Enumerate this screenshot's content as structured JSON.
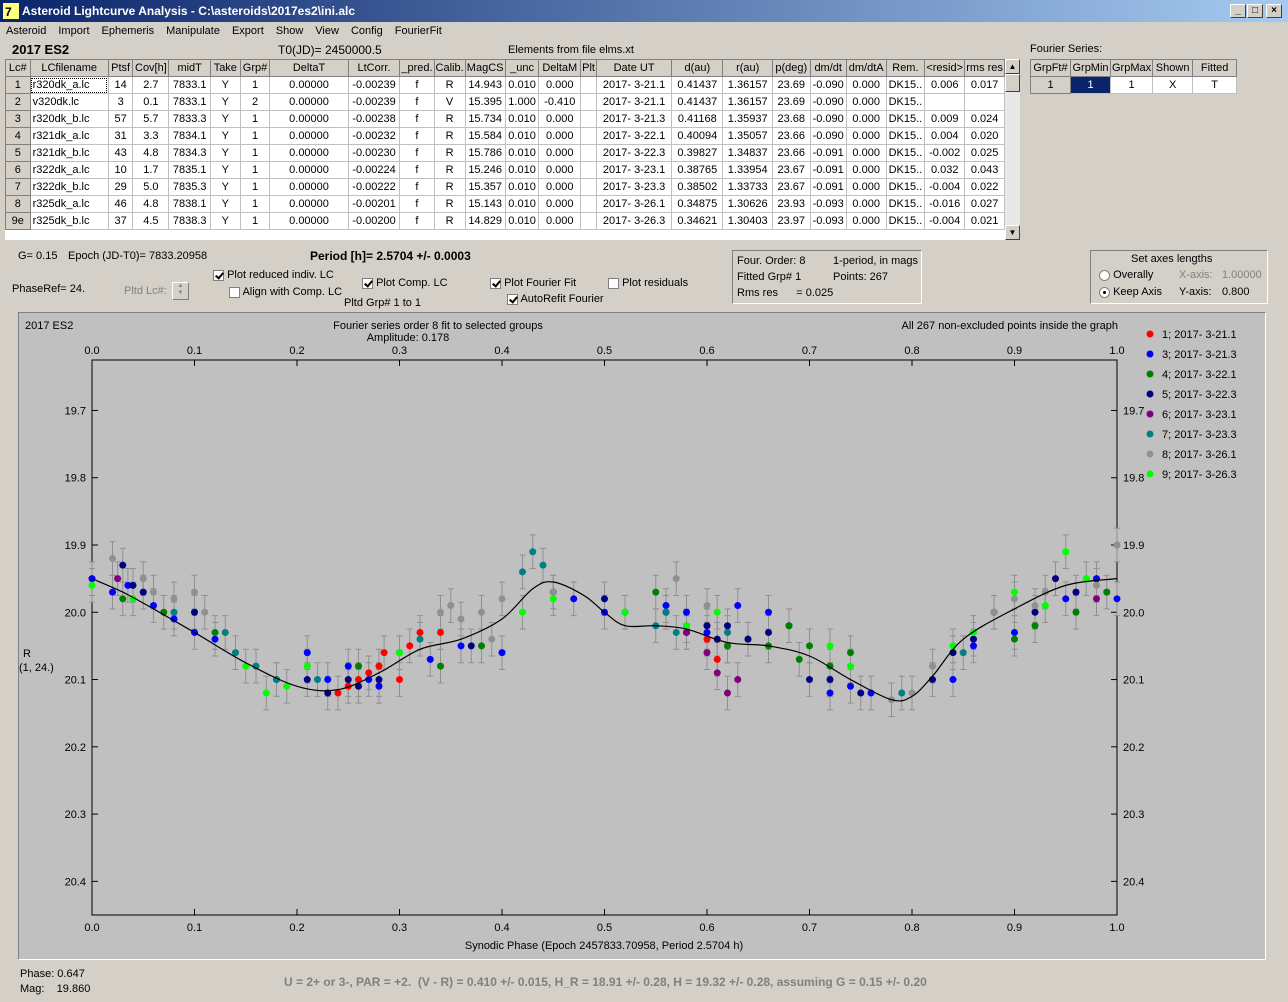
{
  "window": {
    "title": "Asteroid Lightcurve Analysis - C:\\asteroids\\2017es2\\ini.alc"
  },
  "menu": [
    "Asteroid",
    "Import",
    "Ephemeris",
    "Manipulate",
    "Export",
    "Show",
    "View",
    "Config",
    "FourierFit"
  ],
  "header": {
    "object": "2017 ES2",
    "t0": "T0(JD)= 2450000.5",
    "elements": "Elements from file elms.xt"
  },
  "table": {
    "columns": [
      "Lc#",
      "LCfilename",
      "Ptsf",
      "Cov[h]",
      "midT",
      "Take",
      "Grp#",
      "DeltaT",
      "LtCorr.",
      "_pred.",
      "Calib.",
      "MagCS",
      "_unc",
      "DeltaM",
      "Plt",
      "Date UT",
      "d(au)",
      "r(au)",
      "p(deg)",
      "dm/dt",
      "dm/dtA",
      "Rem.",
      "<resid>",
      "rms res"
    ],
    "rows": [
      [
        "1",
        "r320dk_a.lc",
        "14",
        "2.7",
        "7833.1",
        "Y",
        "1",
        "0.00000",
        "-0.00239",
        "f",
        "R",
        "14.943",
        "0.010",
        "0.000",
        "",
        "2017- 3-21.1",
        "0.41437",
        "1.36157",
        "23.69",
        "-0.090",
        "0.000",
        "DK15..",
        "0.006",
        "0.017"
      ],
      [
        "2",
        "v320dk.lc",
        "3",
        "0.1",
        "7833.1",
        "Y",
        "2",
        "0.00000",
        "-0.00239",
        "f",
        "V",
        "15.395",
        "1.000",
        "-0.410",
        "",
        "2017- 3-21.1",
        "0.41437",
        "1.36157",
        "23.69",
        "-0.090",
        "0.000",
        "DK15..",
        "",
        ""
      ],
      [
        "3",
        "r320dk_b.lc",
        "57",
        "5.7",
        "7833.3",
        "Y",
        "1",
        "0.00000",
        "-0.00238",
        "f",
        "R",
        "15.734",
        "0.010",
        "0.000",
        "",
        "2017- 3-21.3",
        "0.41168",
        "1.35937",
        "23.68",
        "-0.090",
        "0.000",
        "DK15..",
        "0.009",
        "0.024"
      ],
      [
        "4",
        "r321dk_a.lc",
        "31",
        "3.3",
        "7834.1",
        "Y",
        "1",
        "0.00000",
        "-0.00232",
        "f",
        "R",
        "15.584",
        "0.010",
        "0.000",
        "",
        "2017- 3-22.1",
        "0.40094",
        "1.35057",
        "23.66",
        "-0.090",
        "0.000",
        "DK15..",
        "0.004",
        "0.020"
      ],
      [
        "5",
        "r321dk_b.lc",
        "43",
        "4.8",
        "7834.3",
        "Y",
        "1",
        "0.00000",
        "-0.00230",
        "f",
        "R",
        "15.786",
        "0.010",
        "0.000",
        "",
        "2017- 3-22.3",
        "0.39827",
        "1.34837",
        "23.66",
        "-0.091",
        "0.000",
        "DK15..",
        "-0.002",
        "0.025"
      ],
      [
        "6",
        "r322dk_a.lc",
        "10",
        "1.7",
        "7835.1",
        "Y",
        "1",
        "0.00000",
        "-0.00224",
        "f",
        "R",
        "15.246",
        "0.010",
        "0.000",
        "",
        "2017- 3-23.1",
        "0.38765",
        "1.33954",
        "23.67",
        "-0.091",
        "0.000",
        "DK15..",
        "0.032",
        "0.043"
      ],
      [
        "7",
        "r322dk_b.lc",
        "29",
        "5.0",
        "7835.3",
        "Y",
        "1",
        "0.00000",
        "-0.00222",
        "f",
        "R",
        "15.357",
        "0.010",
        "0.000",
        "",
        "2017- 3-23.3",
        "0.38502",
        "1.33733",
        "23.67",
        "-0.091",
        "0.000",
        "DK15..",
        "-0.004",
        "0.022"
      ],
      [
        "8",
        "r325dk_a.lc",
        "46",
        "4.8",
        "7838.1",
        "Y",
        "1",
        "0.00000",
        "-0.00201",
        "f",
        "R",
        "15.143",
        "0.010",
        "0.000",
        "",
        "2017- 3-26.1",
        "0.34875",
        "1.30626",
        "23.93",
        "-0.093",
        "0.000",
        "DK15..",
        "-0.016",
        "0.027"
      ],
      [
        "9e",
        "r325dk_b.lc",
        "37",
        "4.5",
        "7838.3",
        "Y",
        "1",
        "0.00000",
        "-0.00200",
        "f",
        "R",
        "14.829",
        "0.010",
        "0.000",
        "",
        "2017- 3-26.3",
        "0.34621",
        "1.30403",
        "23.97",
        "-0.093",
        "0.000",
        "DK15..",
        "-0.004",
        "0.021"
      ]
    ]
  },
  "fourier_series": {
    "title": "Fourier Series:",
    "columns": [
      "GrpFt#",
      "GrpMin",
      "GrpMax",
      "Shown",
      "Fitted"
    ],
    "row": [
      "1",
      "1",
      "1",
      "X",
      "T"
    ]
  },
  "controls": {
    "g": "G= 0.15",
    "epoch": "Epoch (JD-T0)= 7833.20958",
    "period": "Period [h]= 2.5704 +/- 0.0003",
    "phase_ref": "PhaseRef= 24.",
    "pltd_lc": "Pltd Lc#:",
    "plot_reduced": "Plot reduced indiv. LC",
    "align": "Align with Comp. LC",
    "plot_comp": "Plot Comp. LC",
    "pltd_grp": "Pltd Grp#  1   to   1",
    "plot_fourier": "Plot Fourier Fit",
    "autorefit": "AutoRefit Fourier",
    "plot_resid": "Plot residuals"
  },
  "fit_info": {
    "four_order": "Four. Order:  8",
    "one_period": "1-period, in mags",
    "fitted_grp": "Fitted Grp# 1",
    "points": "Points: 267",
    "rms": "Rms res      = 0.025"
  },
  "axes_box": {
    "title": "Set axes lengths",
    "overally": "Overally",
    "keep_axis": "Keep Axis",
    "x_label": "X-axis:",
    "x_value": "1.00000",
    "y_label": "Y-axis:",
    "y_value": "0.800"
  },
  "plot": {
    "object": "2017 ES2",
    "title1": "Fourier series order 8 fit to selected groups",
    "title2": "Amplitude: 0.178",
    "note": "All 267 non-excluded points inside the graph",
    "xlabel": "Synodic Phase (Epoch 2457833.70958, Period 2.5704 h)",
    "ylabel1": "R",
    "ylabel2": "(1, 24.)",
    "x_ticks": [
      "0.0",
      "0.1",
      "0.2",
      "0.3",
      "0.4",
      "0.5",
      "0.6",
      "0.7",
      "0.8",
      "0.9",
      "1.0"
    ],
    "y_ticks": [
      "19.7",
      "19.8",
      "19.9",
      "20.0",
      "20.1",
      "20.2",
      "20.3",
      "20.4"
    ]
  },
  "chart_data": {
    "type": "scatter",
    "title": "Fourier series order 8 fit to selected groups",
    "xlabel": "Synodic Phase (Epoch 2457833.70958, Period 2.5704 h)",
    "ylabel": "R (1, 24.)",
    "xlim": [
      0.0,
      1.0
    ],
    "ylim": [
      19.625,
      20.45
    ],
    "y_inverted": true,
    "grid": false,
    "legend_position": "right",
    "fourier_fit": {
      "x": [
        0.0,
        0.03,
        0.06,
        0.1,
        0.15,
        0.2,
        0.24,
        0.28,
        0.32,
        0.36,
        0.4,
        0.43,
        0.45,
        0.48,
        0.5,
        0.52,
        0.55,
        0.58,
        0.62,
        0.66,
        0.7,
        0.74,
        0.78,
        0.8,
        0.82,
        0.85,
        0.9,
        0.95,
        1.0
      ],
      "y": [
        19.95,
        19.97,
        19.995,
        20.03,
        20.075,
        20.11,
        20.115,
        20.09,
        20.055,
        20.04,
        20.01,
        19.965,
        19.955,
        19.975,
        20.0,
        20.02,
        20.02,
        20.025,
        20.045,
        20.05,
        20.065,
        20.1,
        20.13,
        20.125,
        20.095,
        20.04,
        19.995,
        19.96,
        19.95
      ]
    },
    "series": [
      {
        "name": "1; 2017- 3-21.1",
        "color": "#ff0000",
        "points": [
          [
            0.24,
            20.12
          ],
          [
            0.25,
            20.11
          ],
          [
            0.26,
            20.1
          ],
          [
            0.27,
            20.09
          ],
          [
            0.28,
            20.08
          ],
          [
            0.285,
            20.06
          ],
          [
            0.3,
            20.1
          ],
          [
            0.31,
            20.05
          ],
          [
            0.32,
            20.03
          ],
          [
            0.34,
            20.03
          ],
          [
            0.6,
            20.04
          ],
          [
            0.61,
            20.07
          ],
          [
            0.58,
            20.02
          ],
          [
            0.62,
            20.05
          ]
        ]
      },
      {
        "name": "3; 2017- 3-21.3",
        "color": "#0000ff",
        "points": [
          [
            0.0,
            19.95
          ],
          [
            0.02,
            19.97
          ],
          [
            0.035,
            19.96
          ],
          [
            0.06,
            19.99
          ],
          [
            0.08,
            20.01
          ],
          [
            0.1,
            20.03
          ],
          [
            0.12,
            20.04
          ],
          [
            0.21,
            20.06
          ],
          [
            0.23,
            20.1
          ],
          [
            0.25,
            20.08
          ],
          [
            0.27,
            20.1
          ],
          [
            0.28,
            20.11
          ],
          [
            0.33,
            20.07
          ],
          [
            0.36,
            20.05
          ],
          [
            0.4,
            20.06
          ],
          [
            0.45,
            19.97
          ],
          [
            0.47,
            19.98
          ],
          [
            0.5,
            20.0
          ],
          [
            0.52,
            20.0
          ],
          [
            0.56,
            19.99
          ],
          [
            0.58,
            20.0
          ],
          [
            0.6,
            20.03
          ],
          [
            0.63,
            19.99
          ],
          [
            0.66,
            20.0
          ],
          [
            0.68,
            20.02
          ],
          [
            0.72,
            20.12
          ],
          [
            0.74,
            20.11
          ],
          [
            0.76,
            20.12
          ],
          [
            0.84,
            20.1
          ],
          [
            0.86,
            20.05
          ],
          [
            0.9,
            20.03
          ],
          [
            0.95,
            19.98
          ],
          [
            0.98,
            19.95
          ],
          [
            1.0,
            19.98
          ]
        ]
      },
      {
        "name": "4; 2017- 3-22.1",
        "color": "#008000",
        "points": [
          [
            0.03,
            19.98
          ],
          [
            0.07,
            20.0
          ],
          [
            0.12,
            20.03
          ],
          [
            0.18,
            20.1
          ],
          [
            0.26,
            20.08
          ],
          [
            0.34,
            20.08
          ],
          [
            0.38,
            20.05
          ],
          [
            0.55,
            19.97
          ],
          [
            0.6,
            20.02
          ],
          [
            0.62,
            20.05
          ],
          [
            0.64,
            20.04
          ],
          [
            0.66,
            20.05
          ],
          [
            0.68,
            20.02
          ],
          [
            0.69,
            20.07
          ],
          [
            0.7,
            20.05
          ],
          [
            0.72,
            20.08
          ],
          [
            0.74,
            20.06
          ],
          [
            0.9,
            20.04
          ],
          [
            0.92,
            20.02
          ],
          [
            0.96,
            20.0
          ],
          [
            0.99,
            19.97
          ]
        ]
      },
      {
        "name": "5; 2017- 3-22.3",
        "color": "#000080",
        "points": [
          [
            0.03,
            19.93
          ],
          [
            0.04,
            19.96
          ],
          [
            0.05,
            19.97
          ],
          [
            0.1,
            20.0
          ],
          [
            0.21,
            20.1
          ],
          [
            0.23,
            20.12
          ],
          [
            0.25,
            20.1
          ],
          [
            0.26,
            20.11
          ],
          [
            0.28,
            20.1
          ],
          [
            0.37,
            20.05
          ],
          [
            0.5,
            19.98
          ],
          [
            0.56,
            20.0
          ],
          [
            0.58,
            20.03
          ],
          [
            0.6,
            20.02
          ],
          [
            0.61,
            20.04
          ],
          [
            0.62,
            20.02
          ],
          [
            0.64,
            20.04
          ],
          [
            0.66,
            20.03
          ],
          [
            0.7,
            20.1
          ],
          [
            0.72,
            20.1
          ],
          [
            0.75,
            20.12
          ],
          [
            0.82,
            20.1
          ],
          [
            0.84,
            20.06
          ],
          [
            0.86,
            20.04
          ],
          [
            0.88,
            20.0
          ],
          [
            0.92,
            20.0
          ],
          [
            0.94,
            19.95
          ],
          [
            0.96,
            19.97
          ]
        ]
      },
      {
        "name": "6; 2017- 3-23.1",
        "color": "#800080",
        "points": [
          [
            0.025,
            19.95
          ],
          [
            0.58,
            20.03
          ],
          [
            0.6,
            20.06
          ],
          [
            0.61,
            20.09
          ],
          [
            0.62,
            20.12
          ],
          [
            0.63,
            20.1
          ],
          [
            0.98,
            19.98
          ]
        ]
      },
      {
        "name": "7; 2017- 3-23.3",
        "color": "#008080",
        "points": [
          [
            0.08,
            20.0
          ],
          [
            0.13,
            20.03
          ],
          [
            0.14,
            20.06
          ],
          [
            0.16,
            20.08
          ],
          [
            0.18,
            20.1
          ],
          [
            0.22,
            20.1
          ],
          [
            0.3,
            20.06
          ],
          [
            0.32,
            20.04
          ],
          [
            0.42,
            19.94
          ],
          [
            0.43,
            19.91
          ],
          [
            0.44,
            19.93
          ],
          [
            0.55,
            20.02
          ],
          [
            0.56,
            20.0
          ],
          [
            0.57,
            20.03
          ],
          [
            0.62,
            20.03
          ],
          [
            0.79,
            20.12
          ],
          [
            0.85,
            20.06
          ]
        ]
      },
      {
        "name": "8; 2017- 3-26.1",
        "color": "#909090",
        "points": [
          [
            0.02,
            19.92
          ],
          [
            0.05,
            19.95
          ],
          [
            0.06,
            19.97
          ],
          [
            0.08,
            19.98
          ],
          [
            0.1,
            19.97
          ],
          [
            0.11,
            20.0
          ],
          [
            0.34,
            20.0
          ],
          [
            0.35,
            19.99
          ],
          [
            0.36,
            20.01
          ],
          [
            0.38,
            20.0
          ],
          [
            0.39,
            20.04
          ],
          [
            0.4,
            19.98
          ],
          [
            0.45,
            19.97
          ],
          [
            0.57,
            19.95
          ],
          [
            0.6,
            19.99
          ],
          [
            0.78,
            20.13
          ],
          [
            0.8,
            20.12
          ],
          [
            0.82,
            20.08
          ],
          [
            0.88,
            20.0
          ],
          [
            0.9,
            19.98
          ],
          [
            0.92,
            19.99
          ],
          [
            0.93,
            19.97
          ],
          [
            0.98,
            19.96
          ],
          [
            1.0,
            19.9
          ]
        ]
      },
      {
        "name": "9; 2017- 3-26.3",
        "color": "#00ff00",
        "points": [
          [
            0.0,
            19.96
          ],
          [
            0.04,
            19.98
          ],
          [
            0.15,
            20.08
          ],
          [
            0.17,
            20.12
          ],
          [
            0.19,
            20.11
          ],
          [
            0.21,
            20.08
          ],
          [
            0.3,
            20.06
          ],
          [
            0.42,
            20.0
          ],
          [
            0.45,
            19.98
          ],
          [
            0.52,
            20.0
          ],
          [
            0.58,
            20.02
          ],
          [
            0.61,
            20.0
          ],
          [
            0.72,
            20.05
          ],
          [
            0.74,
            20.08
          ],
          [
            0.84,
            20.05
          ],
          [
            0.86,
            20.03
          ],
          [
            0.9,
            19.97
          ],
          [
            0.93,
            19.99
          ],
          [
            0.95,
            19.91
          ],
          [
            0.97,
            19.95
          ]
        ]
      }
    ]
  },
  "status": {
    "phase": "Phase:  0.647",
    "mag": "Mag:    19.860",
    "summary": "U = 2+ or 3-, PAR = +2.  (V - R) = 0.410 +/- 0.015, H_R = 18.91 +/- 0.28, H = 19.32 +/- 0.28, assuming G = 0.15 +/- 0.20"
  }
}
